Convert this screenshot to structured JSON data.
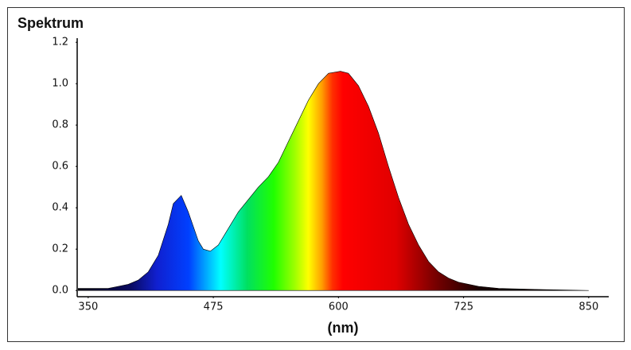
{
  "chart_data": {
    "type": "area",
    "title": "Spektrum",
    "x_label": "(nm)",
    "x": [
      340,
      360,
      370,
      380,
      390,
      400,
      410,
      420,
      430,
      435,
      443,
      450,
      460,
      465,
      472,
      480,
      490,
      500,
      510,
      520,
      530,
      540,
      550,
      560,
      570,
      580,
      590,
      602,
      610,
      620,
      630,
      640,
      650,
      660,
      670,
      680,
      690,
      700,
      710,
      720,
      740,
      760,
      800,
      850
    ],
    "values": [
      0.01,
      0.01,
      0.01,
      0.02,
      0.03,
      0.05,
      0.09,
      0.17,
      0.32,
      0.42,
      0.46,
      0.38,
      0.24,
      0.2,
      0.19,
      0.22,
      0.3,
      0.38,
      0.44,
      0.5,
      0.55,
      0.62,
      0.72,
      0.82,
      0.92,
      1.0,
      1.05,
      1.06,
      1.05,
      0.99,
      0.89,
      0.76,
      0.6,
      0.45,
      0.32,
      0.22,
      0.14,
      0.09,
      0.06,
      0.04,
      0.02,
      0.01,
      0.005,
      0.0
    ],
    "xlim": [
      339,
      870
    ],
    "ylim": [
      -0.03,
      1.22
    ],
    "xticks": [
      350,
      475,
      600,
      725,
      850
    ],
    "yticks": [
      {
        "value": 0,
        "label": "0.0"
      },
      0.2,
      0.4,
      0.6,
      0.8,
      {
        "value": 1,
        "label": "1.0"
      },
      1.2
    ],
    "grid": false
  }
}
